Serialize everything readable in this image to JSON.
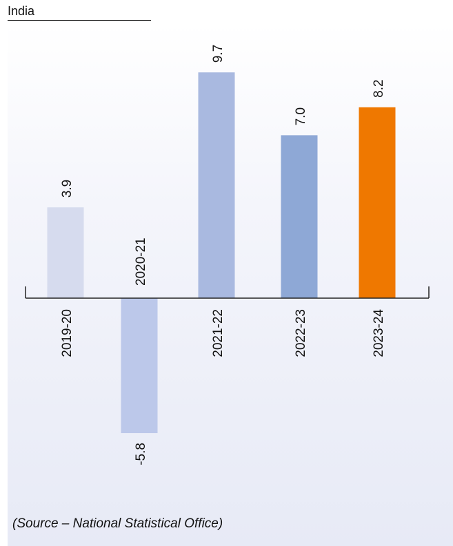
{
  "chart_data": {
    "type": "bar",
    "title": "India",
    "categories": [
      "2019-20",
      "2020-21",
      "2021-22",
      "2022-23",
      "2023-24"
    ],
    "values": [
      3.9,
      -5.8,
      9.7,
      7.0,
      8.2
    ],
    "value_labels": [
      "3.9",
      "-5.8",
      "9.7",
      "7.0",
      "8.2"
    ],
    "colors": [
      "#d6dbee",
      "#bcc8ea",
      "#a9b9e0",
      "#8ea8d6",
      "#ef7800"
    ],
    "xlabel": "",
    "ylabel": "",
    "ylim": [
      -5.8,
      8.2
    ],
    "grid": false,
    "legend": "none",
    "source": "(Source – National Statistical Office)"
  }
}
